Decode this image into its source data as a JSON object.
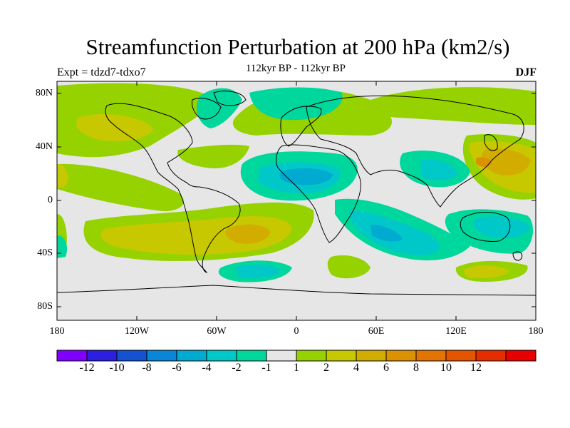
{
  "title": "Streamfunction Perturbation at 200 hPa (km2/s)",
  "left_label": "Expt = tdzd7-tdxo7",
  "center_label": "112kyr BP - 112kyr BP",
  "right_label": "DJF",
  "lat_ticks": [
    "80N",
    "40N",
    "0",
    "40S",
    "80S"
  ],
  "lon_ticks": [
    "180",
    "120W",
    "60W",
    "0",
    "60E",
    "120E",
    "180"
  ],
  "colorbar": {
    "colors": [
      "#7f00ff",
      "#2d1fe0",
      "#1552d2",
      "#0a86d8",
      "#00aad0",
      "#00c8c8",
      "#00d79c",
      "#e6e6e6",
      "#96d200",
      "#c8c800",
      "#d2ad00",
      "#dc9100",
      "#e47400",
      "#e45500",
      "#e42e00",
      "#e60000"
    ],
    "labels": [
      "-12",
      "-10",
      "-8",
      "-6",
      "-4",
      "-2",
      "-1",
      "1",
      "2",
      "4",
      "6",
      "8",
      "10",
      "12"
    ]
  },
  "background_color": "#e6e6e6"
}
